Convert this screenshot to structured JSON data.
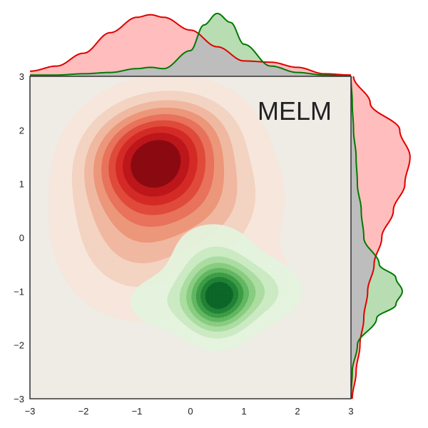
{
  "chart_data": {
    "type": "joint-kde",
    "annotation": "MELM",
    "xlim": [
      -3,
      3
    ],
    "ylim": [
      -3,
      3
    ],
    "xticks": [
      "−3",
      "−2",
      "−1",
      "0",
      "1",
      "2",
      "3"
    ],
    "yticks": [
      "−3",
      "−2",
      "−1",
      "0",
      "1",
      "2",
      "3"
    ],
    "xtick_values": [
      -3,
      -2,
      -1,
      0,
      1,
      2,
      3
    ],
    "ytick_values": [
      -3,
      -2,
      -1,
      0,
      1,
      2,
      3
    ],
    "grid": false,
    "panel_bg": "#efebe5",
    "overlap_fill": "#bdbdbd",
    "series": [
      {
        "color": "#e00000",
        "fill": "#ffbdbd",
        "kde_palette": [
          "#f6e6dc",
          "#f3d3c1",
          "#f0b8a0",
          "#ec967a",
          "#e8725b",
          "#e04a3a",
          "#d42a26",
          "#bd161b",
          "#8b0a12"
        ],
        "blobs": [
          {
            "mx": -0.75,
            "my": 1.4,
            "sx": 0.72,
            "sy": 0.62,
            "w": 1.0
          },
          {
            "mx": -1.0,
            "my": 0.15,
            "sx": 0.85,
            "sy": 0.9,
            "w": 0.38
          },
          {
            "mx": 0.45,
            "my": 0.7,
            "sx": 0.75,
            "sy": 0.75,
            "w": 0.28
          },
          {
            "mx": 1.3,
            "my": -0.8,
            "sx": 0.45,
            "sy": 0.4,
            "w": 0.12
          },
          {
            "mx": -0.1,
            "my": 2.0,
            "sx": 0.7,
            "sy": 0.5,
            "w": 0.3
          }
        ],
        "marginal_x": {
          "x": [
            -3.0,
            -2.5,
            -2.0,
            -1.5,
            -1.0,
            -0.75,
            -0.5,
            0.0,
            0.5,
            1.0,
            1.5,
            2.0,
            2.5,
            3.0
          ],
          "density": [
            0.04,
            0.08,
            0.18,
            0.34,
            0.46,
            0.48,
            0.46,
            0.36,
            0.23,
            0.12,
            0.11,
            0.07,
            0.02,
            0.01
          ]
        },
        "marginal_y": {
          "y": [
            -3.0,
            -2.5,
            -2.0,
            -1.5,
            -1.0,
            -0.5,
            0.0,
            0.5,
            1.0,
            1.5,
            2.0,
            2.5,
            3.0
          ],
          "density": [
            0.01,
            0.04,
            0.07,
            0.1,
            0.13,
            0.18,
            0.24,
            0.33,
            0.42,
            0.46,
            0.38,
            0.15,
            0.02
          ]
        }
      },
      {
        "color": "#007a00",
        "fill": "#b8ddb2",
        "kde_palette": [
          "#e3f4de",
          "#c9eac1",
          "#a9dc9f",
          "#86cb7e",
          "#5fb560",
          "#3a9a44",
          "#1f7f33",
          "#0a6428"
        ],
        "blobs": [
          {
            "mx": 0.5,
            "my": -1.1,
            "sx": 0.38,
            "sy": 0.42,
            "w": 1.0
          },
          {
            "mx": 1.1,
            "my": -1.0,
            "sx": 0.55,
            "sy": 0.35,
            "w": 0.3
          },
          {
            "mx": -0.4,
            "my": -1.2,
            "sx": 0.55,
            "sy": 0.35,
            "w": 0.14
          },
          {
            "mx": 0.4,
            "my": -0.2,
            "sx": 0.55,
            "sy": 0.4,
            "w": 0.1
          }
        ],
        "marginal_x": {
          "x": [
            -3.0,
            -2.5,
            -2.0,
            -1.5,
            -1.0,
            -0.75,
            -0.5,
            0.0,
            0.25,
            0.5,
            0.75,
            1.0,
            1.5,
            2.0,
            2.5,
            3.0
          ],
          "density": [
            0.01,
            0.01,
            0.02,
            0.03,
            0.06,
            0.07,
            0.06,
            0.2,
            0.4,
            0.49,
            0.42,
            0.25,
            0.08,
            0.03,
            0.01,
            0.0
          ],
          "smooth": true
        },
        "marginal_y": {
          "y": [
            -3.0,
            -2.5,
            -2.0,
            -1.5,
            -1.25,
            -1.0,
            -0.75,
            -0.5,
            0.0,
            0.5,
            1.0,
            1.5,
            2.0,
            2.5,
            3.0
          ],
          "density": [
            0.0,
            0.01,
            0.05,
            0.2,
            0.35,
            0.4,
            0.35,
            0.22,
            0.1,
            0.08,
            0.05,
            0.04,
            0.02,
            0.01,
            0.0
          ]
        }
      }
    ]
  }
}
